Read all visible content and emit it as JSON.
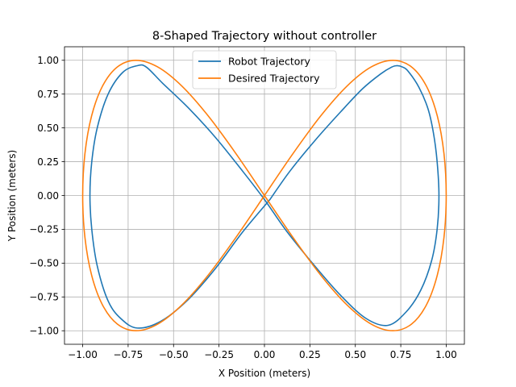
{
  "chart_data": {
    "type": "line",
    "title": "8-Shaped Trajectory without controller",
    "xlabel": "X Position (meters)",
    "ylabel": "Y Position (meters)",
    "xlim": [
      -1.1,
      1.1
    ],
    "ylim": [
      -1.1,
      1.1
    ],
    "xticks": [
      -1.0,
      -0.75,
      -0.5,
      -0.25,
      0.0,
      0.25,
      0.5,
      0.75,
      1.0
    ],
    "xtick_labels": [
      "−1.00",
      "−0.75",
      "−0.50",
      "−0.25",
      "0.00",
      "0.25",
      "0.50",
      "0.75",
      "1.00"
    ],
    "yticks": [
      -1.0,
      -0.75,
      -0.5,
      -0.25,
      0.0,
      0.25,
      0.5,
      0.75,
      1.0
    ],
    "ytick_labels": [
      "−1.00",
      "−0.75",
      "−0.50",
      "−0.25",
      "0.00",
      "0.25",
      "0.50",
      "0.75",
      "1.00"
    ],
    "grid": true,
    "legend_position": "top-center",
    "series": [
      {
        "name": "Robot Trajectory",
        "color": "#1f77b4",
        "x": [
          0.03,
          0.14,
          0.28,
          0.42,
          0.54,
          0.64,
          0.7,
          0.73,
          0.76,
          0.79,
          0.85,
          0.9,
          0.93,
          0.95,
          0.96,
          0.95,
          0.92,
          0.86,
          0.78,
          0.68,
          0.56,
          0.42,
          0.27,
          0.12,
          0.0,
          -0.12,
          -0.27,
          -0.42,
          -0.56,
          -0.65,
          -0.7,
          -0.78,
          -0.86,
          -0.92,
          -0.95,
          -0.96,
          -0.95,
          -0.92,
          -0.86,
          -0.79,
          -0.7,
          -0.57,
          -0.42,
          -0.27,
          -0.12,
          0.03
        ],
        "y": [
          -0.03,
          0.18,
          0.41,
          0.62,
          0.79,
          0.9,
          0.95,
          0.96,
          0.95,
          0.92,
          0.8,
          0.64,
          0.46,
          0.25,
          0.0,
          -0.25,
          -0.48,
          -0.7,
          -0.86,
          -0.96,
          -0.91,
          -0.74,
          -0.51,
          -0.26,
          -0.03,
          0.18,
          0.43,
          0.65,
          0.83,
          0.95,
          0.96,
          0.91,
          0.75,
          0.5,
          0.25,
          0.0,
          -0.25,
          -0.52,
          -0.78,
          -0.91,
          -0.98,
          -0.93,
          -0.77,
          -0.54,
          -0.27,
          -0.03
        ]
      },
      {
        "name": "Desired Trajectory",
        "color": "#ff7f0e",
        "x": [
          0.0,
          0.1564,
          0.309,
          0.454,
          0.5878,
          0.7071,
          0.809,
          0.891,
          0.9511,
          0.9877,
          1.0,
          0.9877,
          0.9511,
          0.891,
          0.809,
          0.7071,
          0.5878,
          0.454,
          0.309,
          0.1564,
          0.0,
          -0.1564,
          -0.309,
          -0.454,
          -0.5878,
          -0.7071,
          -0.809,
          -0.891,
          -0.9511,
          -0.9877,
          -1.0,
          -0.9877,
          -0.9511,
          -0.891,
          -0.809,
          -0.7071,
          -0.5878,
          -0.454,
          -0.309,
          -0.1564,
          0.0
        ],
        "y": [
          0.0,
          0.309,
          0.5878,
          0.809,
          0.9511,
          1.0,
          0.9511,
          0.809,
          0.5878,
          0.309,
          0.0,
          -0.309,
          -0.5878,
          -0.809,
          -0.9511,
          -1.0,
          -0.9511,
          -0.809,
          -0.5878,
          -0.309,
          0.0,
          0.309,
          0.5878,
          0.809,
          0.9511,
          1.0,
          0.9511,
          0.809,
          0.5878,
          0.309,
          0.0,
          -0.309,
          -0.5878,
          -0.809,
          -0.9511,
          -1.0,
          -0.9511,
          -0.809,
          -0.5878,
          -0.309,
          0.0
        ]
      }
    ]
  }
}
